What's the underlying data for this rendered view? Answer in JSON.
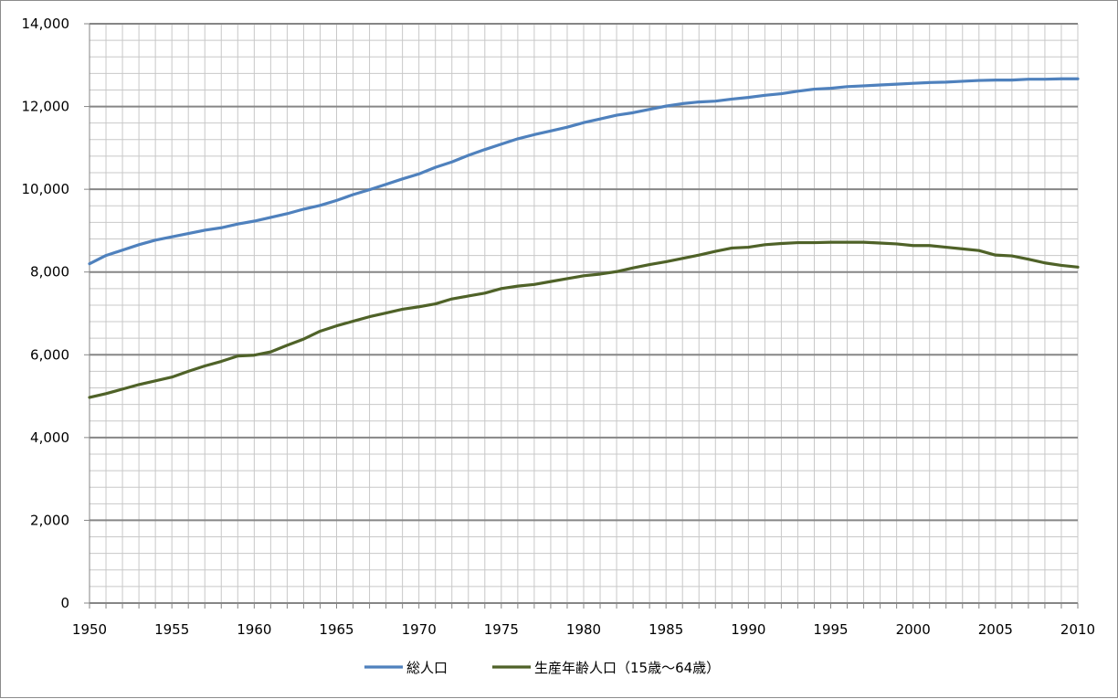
{
  "chart_data": {
    "type": "line",
    "title": "",
    "xlabel": "",
    "ylabel": "",
    "xlim": [
      1950,
      2010
    ],
    "ylim": [
      0,
      14000
    ],
    "y_major_step": 2000,
    "y_minor_step": 400,
    "x_tick_step": 5,
    "grid": true,
    "legend_position": "bottom",
    "x": [
      1950,
      1951,
      1952,
      1953,
      1954,
      1955,
      1956,
      1957,
      1958,
      1959,
      1960,
      1961,
      1962,
      1963,
      1964,
      1965,
      1966,
      1967,
      1968,
      1969,
      1970,
      1971,
      1972,
      1973,
      1974,
      1975,
      1976,
      1977,
      1978,
      1979,
      1980,
      1981,
      1982,
      1983,
      1984,
      1985,
      1986,
      1987,
      1988,
      1989,
      1990,
      1991,
      1992,
      1993,
      1994,
      1995,
      1996,
      1997,
      1998,
      1999,
      2000,
      2001,
      2002,
      2003,
      2004,
      2005,
      2006,
      2007,
      2008,
      2009,
      2010
    ],
    "series": [
      {
        "name": "総人口",
        "color": "#4f81bd",
        "values": [
          8200,
          8400,
          8530,
          8660,
          8770,
          8850,
          8930,
          9010,
          9070,
          9160,
          9230,
          9320,
          9410,
          9520,
          9610,
          9730,
          9870,
          9990,
          10120,
          10250,
          10370,
          10530,
          10660,
          10820,
          10960,
          11090,
          11220,
          11320,
          11410,
          11500,
          11610,
          11700,
          11790,
          11850,
          11930,
          12010,
          12070,
          12110,
          12130,
          12180,
          12220,
          12270,
          12310,
          12370,
          12420,
          12440,
          12480,
          12500,
          12520,
          12540,
          12560,
          12580,
          12590,
          12610,
          12630,
          12640,
          12640,
          12660,
          12660,
          12670,
          12670
        ]
      },
      {
        "name": "生産年齢人口（15歳〜64歳）",
        "color": "#4f6228",
        "values": [
          4970,
          5060,
          5170,
          5280,
          5370,
          5460,
          5600,
          5730,
          5840,
          5970,
          5990,
          6070,
          6230,
          6380,
          6570,
          6700,
          6810,
          6920,
          7010,
          7100,
          7160,
          7230,
          7350,
          7420,
          7490,
          7600,
          7660,
          7700,
          7770,
          7840,
          7910,
          7950,
          8010,
          8100,
          8180,
          8250,
          8330,
          8410,
          8500,
          8580,
          8600,
          8660,
          8690,
          8710,
          8710,
          8720,
          8720,
          8720,
          8700,
          8680,
          8640,
          8640,
          8600,
          8560,
          8520,
          8410,
          8390,
          8310,
          8220,
          8160,
          8120
        ]
      }
    ],
    "y_tick_labels": [
      "0",
      "2,000",
      "4,000",
      "6,000",
      "8,000",
      "10,000",
      "12,000",
      "14,000"
    ],
    "x_tick_labels": [
      "1950",
      "1955",
      "1960",
      "1965",
      "1970",
      "1975",
      "1980",
      "1985",
      "1990",
      "1995",
      "2000",
      "2005",
      "2010"
    ]
  }
}
